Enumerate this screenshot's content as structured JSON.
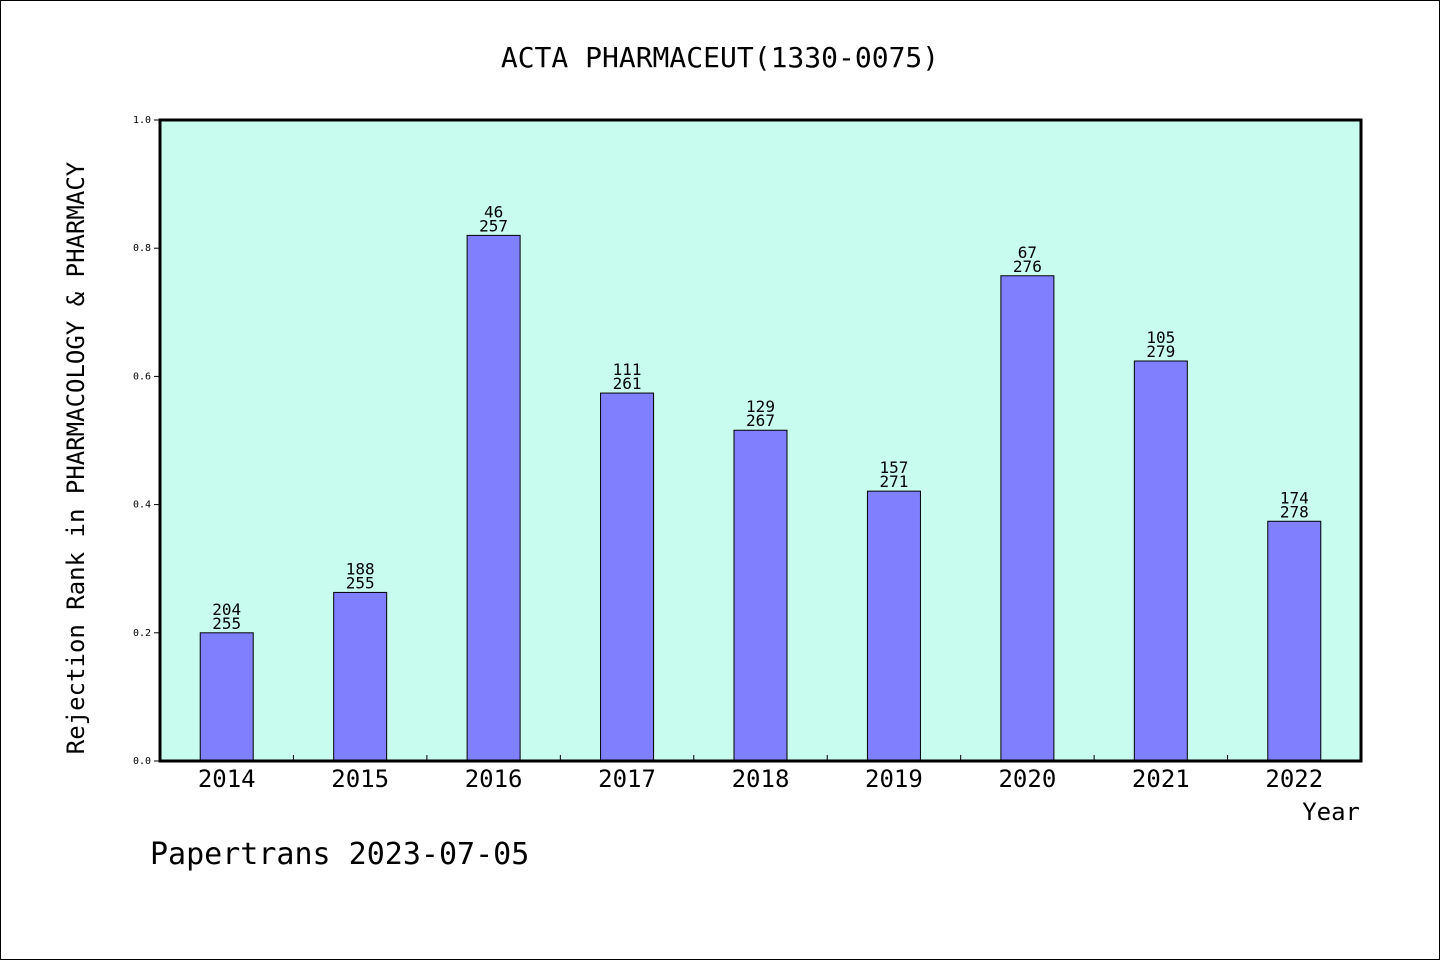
{
  "chart_data": {
    "type": "bar",
    "title": "ACTA PHARMACEUT(1330-0075)",
    "xlabel": "Year",
    "ylabel": "Rejection Rank in PHARMACOLOGY & PHARMACY",
    "ylim": [
      0,
      1.0
    ],
    "yticks": [
      "0.0",
      "0.2",
      "0.4",
      "0.6",
      "0.8",
      "1.0"
    ],
    "grid": false,
    "colors": {
      "plot_bg": "#c8fcee",
      "bar": "#8080ff",
      "axis": "#000000"
    },
    "categories": [
      "2014",
      "2015",
      "2016",
      "2017",
      "2018",
      "2019",
      "2020",
      "2021",
      "2022"
    ],
    "values": [
      0.2,
      0.263,
      0.82,
      0.574,
      0.516,
      0.421,
      0.757,
      0.624,
      0.374
    ],
    "labels_top": [
      "204",
      "188",
      "46",
      "111",
      "129",
      "157",
      "67",
      "105",
      "174"
    ],
    "labels_bottom": [
      "255",
      "255",
      "257",
      "261",
      "267",
      "271",
      "276",
      "279",
      "278"
    ]
  },
  "footer": {
    "text": "Papertrans 2023-07-05"
  }
}
